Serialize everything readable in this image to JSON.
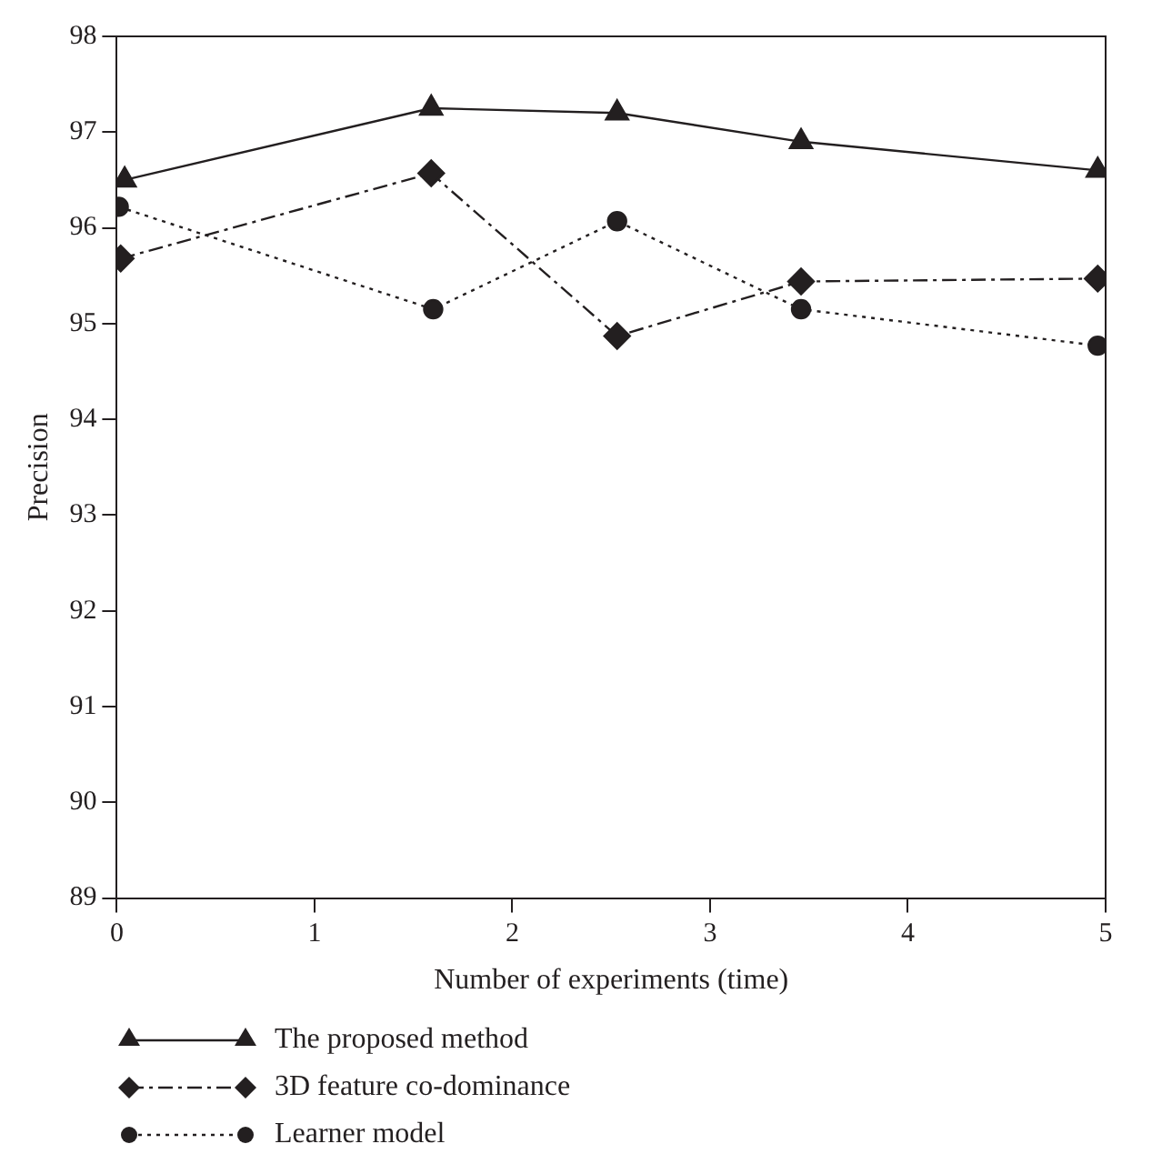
{
  "chart_data": {
    "type": "line",
    "xlabel": "Number of experiments (time)",
    "ylabel": "Precision",
    "xlim": [
      0,
      5
    ],
    "xticks": [
      0,
      1,
      2,
      3,
      4,
      5
    ],
    "ylim": [
      89,
      98
    ],
    "yticks": [
      89,
      90,
      91,
      92,
      93,
      94,
      95,
      96,
      97,
      98
    ],
    "grid": false,
    "legend": "bottom left",
    "series": [
      {
        "name": "The proposed method",
        "color": "#231f20",
        "marker": "triangle",
        "line_style": "solid",
        "x": [
          0.04,
          1.59,
          2.53,
          3.46,
          4.96
        ],
        "values": [
          96.5,
          97.25,
          97.2,
          96.9,
          96.6
        ]
      },
      {
        "name": "3D feature co-dominance",
        "color": "#231f20",
        "marker": "diamond",
        "line_style": "dashed",
        "x": [
          0.02,
          1.59,
          2.53,
          3.46,
          4.96
        ],
        "values": [
          95.68,
          96.57,
          94.87,
          95.44,
          95.47
        ]
      },
      {
        "name": "Learner model",
        "color": "#231f20",
        "marker": "circle",
        "line_style": "dotted",
        "x": [
          0.01,
          1.6,
          2.53,
          3.46,
          4.96
        ],
        "values": [
          96.22,
          95.15,
          96.07,
          95.15,
          94.77
        ]
      }
    ]
  }
}
